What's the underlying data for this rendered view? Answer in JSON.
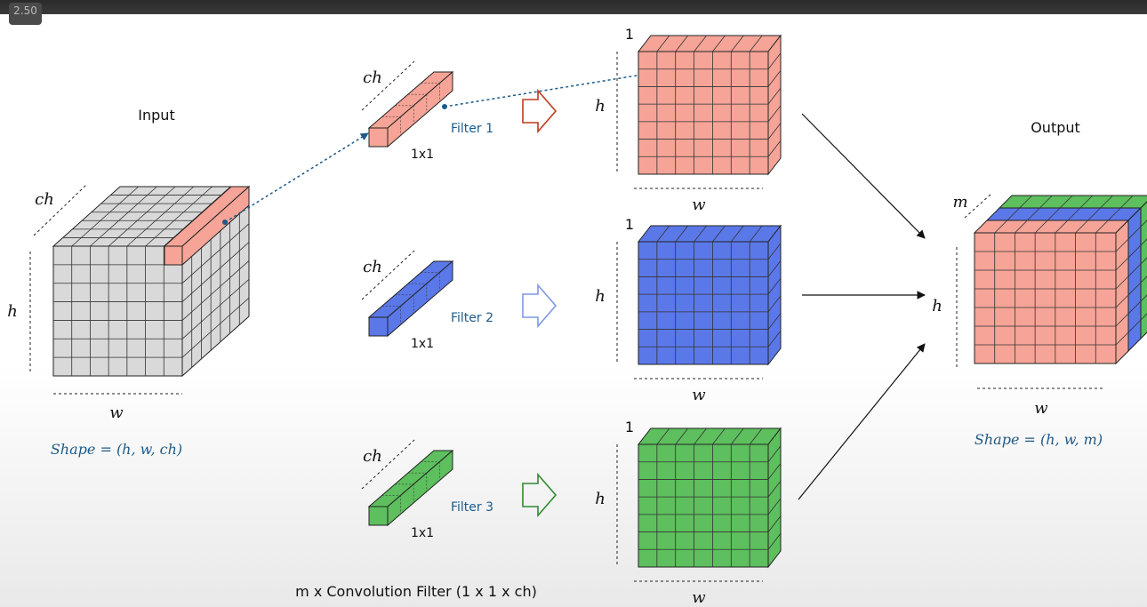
{
  "player": {
    "speed_badge": "2.50"
  },
  "input": {
    "title": "Input",
    "dim_ch": "ch",
    "dim_h": "h",
    "dim_w": "w",
    "shape": "Shape = (h, w, ch)"
  },
  "filters": [
    {
      "name": "Filter 1",
      "size": "1x1",
      "dim_ch": "ch",
      "color": "#f5a497"
    },
    {
      "name": "Filter 2",
      "size": "1x1",
      "dim_ch": "ch",
      "color": "#5b78e8"
    },
    {
      "name": "Filter 3",
      "size": "1x1",
      "dim_ch": "ch",
      "color": "#5dbf5d"
    }
  ],
  "feature_maps": [
    {
      "depth": "1",
      "dim_h": "h",
      "dim_w": "w",
      "color": "#f5a497"
    },
    {
      "depth": "1",
      "dim_h": "h",
      "dim_w": "w",
      "color": "#5b78e8"
    },
    {
      "depth": "1",
      "dim_h": "h",
      "dim_w": "w",
      "color": "#5dbf5d"
    }
  ],
  "output": {
    "title": "Output",
    "dim_m": "m",
    "dim_h": "h",
    "dim_w": "w",
    "shape": "Shape = (h, w, m)"
  },
  "caption": "m x Convolution Filter (1 x 1 x ch)",
  "colors": {
    "input_cube": "#d9d9d9",
    "grid_line": "#222222",
    "link_dots": "#1d5a8a",
    "arrow_red": "#c0391b",
    "arrow_blue": "#7f97ea",
    "arrow_green": "#2e8a2e"
  }
}
